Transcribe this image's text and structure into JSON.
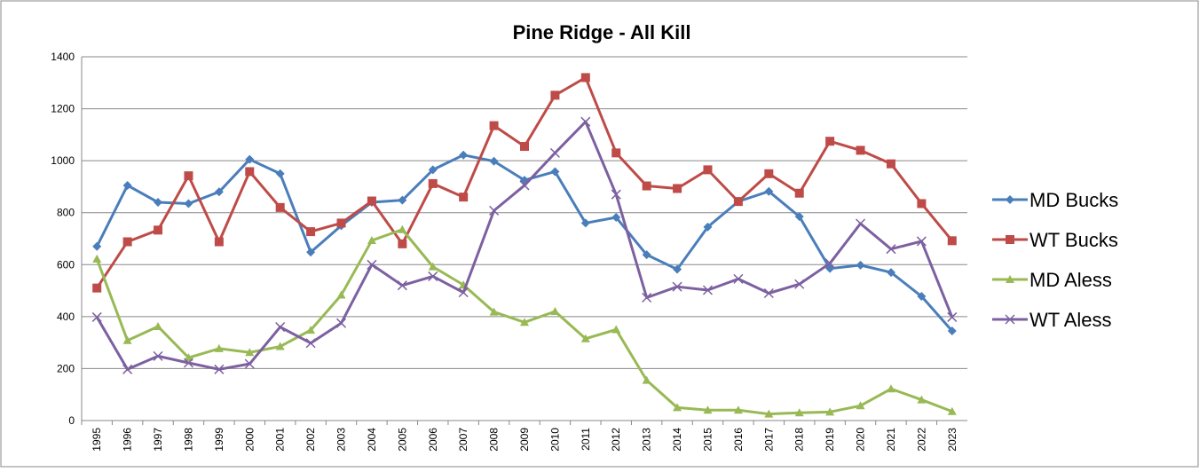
{
  "chart_data": {
    "type": "line",
    "title": "Pine Ridge - All Kill",
    "categories": [
      "1995",
      "1996",
      "1997",
      "1998",
      "1999",
      "2000",
      "2001",
      "2002",
      "2003",
      "2004",
      "2005",
      "2006",
      "2007",
      "2008",
      "2009",
      "2010",
      "2011",
      "2012",
      "2013",
      "2014",
      "2015",
      "2016",
      "2017",
      "2018",
      "2019",
      "2020",
      "2021",
      "2022",
      "2023"
    ],
    "series": [
      {
        "name": "MD Bucks",
        "color": "#4a7ebb",
        "marker": "diamond",
        "values": [
          670,
          905,
          840,
          835,
          880,
          1005,
          950,
          648,
          750,
          840,
          848,
          965,
          1022,
          998,
          925,
          958,
          760,
          782,
          638,
          582,
          745,
          843,
          882,
          785,
          585,
          598,
          570,
          478,
          345
        ]
      },
      {
        "name": "WT Bucks",
        "color": "#be4b48",
        "marker": "square",
        "values": [
          510,
          688,
          733,
          942,
          688,
          958,
          820,
          727,
          760,
          845,
          680,
          912,
          860,
          1135,
          1055,
          1252,
          1320,
          1030,
          903,
          893,
          965,
          843,
          950,
          875,
          1075,
          1040,
          988,
          835,
          692
        ]
      },
      {
        "name": "MD Aless",
        "color": "#98b954",
        "marker": "triangle",
        "values": [
          622,
          308,
          362,
          242,
          277,
          262,
          285,
          348,
          483,
          693,
          735,
          592,
          522,
          418,
          378,
          420,
          315,
          350,
          155,
          50,
          40,
          40,
          25,
          30,
          33,
          57,
          122,
          80,
          35
        ]
      },
      {
        "name": "WT Aless",
        "color": "#7d60a0",
        "marker": "x",
        "values": [
          398,
          197,
          248,
          222,
          197,
          218,
          360,
          298,
          375,
          600,
          520,
          555,
          493,
          808,
          905,
          1030,
          1150,
          870,
          473,
          515,
          502,
          545,
          490,
          525,
          605,
          758,
          660,
          690,
          398
        ]
      }
    ],
    "ylim": [
      0,
      1400
    ],
    "yticks": [
      0,
      200,
      400,
      600,
      800,
      1000,
      1200,
      1400
    ],
    "grid": true,
    "legend": "right"
  }
}
